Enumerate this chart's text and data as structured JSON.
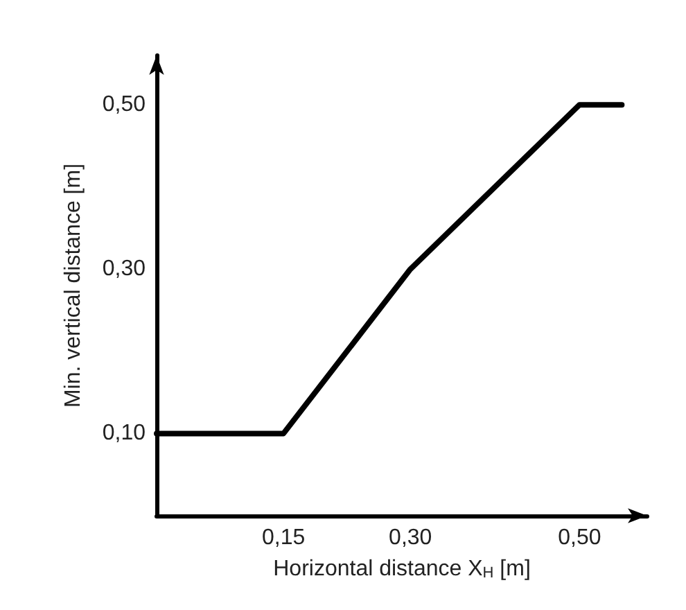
{
  "chart_data": {
    "type": "line",
    "xlabel": "Horizontal distance X$_{H}$ [m]",
    "ylabel": "Min. vertical distance [m]",
    "x": [
      0,
      0.15,
      0.3,
      0.5,
      0.55
    ],
    "series": [
      {
        "color": "#000000",
        "values": [
          0.1,
          0.1,
          0.3,
          0.5,
          0.5
        ]
      }
    ],
    "xlim": [
      0,
      0.58
    ],
    "ylim": [
      0,
      0.56
    ],
    "xticks": [
      {
        "value": 0.15,
        "label": "0,15"
      },
      {
        "value": 0.3,
        "label": "0,30"
      },
      {
        "value": 0.5,
        "label": "0,50"
      }
    ],
    "yticks": [
      {
        "value": 0.1,
        "label": "0,10"
      },
      {
        "value": 0.3,
        "label": "0,30"
      },
      {
        "value": 0.5,
        "label": "0,50"
      }
    ],
    "grid": false,
    "marker": "none",
    "line_style": "solid"
  }
}
